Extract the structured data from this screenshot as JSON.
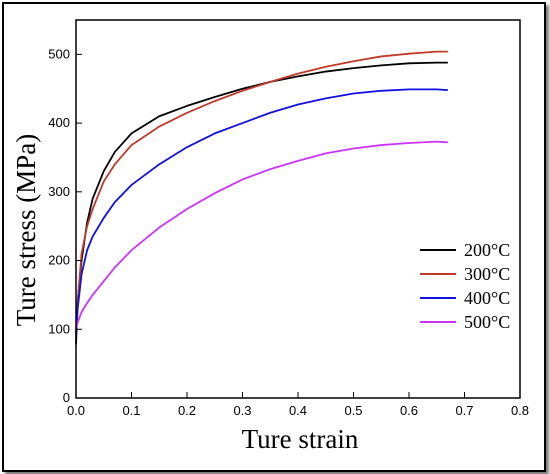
{
  "chart_data": {
    "type": "line",
    "xlabel": "Ture strain",
    "ylabel": "Ture stress (MPa)",
    "xlim": [
      0,
      0.8
    ],
    "ylim": [
      0,
      550
    ],
    "xticks": [
      "0.0",
      "0.1",
      "0.2",
      "0.3",
      "0.4",
      "0.5",
      "0.6",
      "0.7",
      "0.8"
    ],
    "yticks": [
      "0",
      "100",
      "200",
      "300",
      "400",
      "500"
    ],
    "legend_position": "bottom-right",
    "grid": false,
    "series": [
      {
        "name": "200°C",
        "color": "#000000",
        "x": [
          0,
          0.003,
          0.01,
          0.02,
          0.03,
          0.05,
          0.07,
          0.1,
          0.15,
          0.2,
          0.25,
          0.3,
          0.35,
          0.4,
          0.45,
          0.5,
          0.55,
          0.6,
          0.65,
          0.67
        ],
        "y": [
          78,
          140,
          200,
          255,
          290,
          330,
          358,
          385,
          410,
          425,
          438,
          450,
          460,
          468,
          475,
          480,
          484,
          487,
          488,
          488
        ]
      },
      {
        "name": "300°C",
        "color": "#c0392b",
        "x": [
          0,
          0.003,
          0.01,
          0.02,
          0.03,
          0.05,
          0.07,
          0.1,
          0.15,
          0.2,
          0.25,
          0.3,
          0.35,
          0.4,
          0.45,
          0.5,
          0.55,
          0.6,
          0.65,
          0.67
        ],
        "y": [
          95,
          140,
          210,
          250,
          275,
          315,
          340,
          368,
          395,
          415,
          432,
          447,
          460,
          472,
          482,
          490,
          497,
          501,
          504,
          504
        ]
      },
      {
        "name": "400°C",
        "color": "#1010e0",
        "x": [
          0,
          0.003,
          0.01,
          0.02,
          0.03,
          0.05,
          0.07,
          0.1,
          0.15,
          0.2,
          0.25,
          0.3,
          0.35,
          0.4,
          0.45,
          0.5,
          0.55,
          0.6,
          0.65,
          0.67
        ],
        "y": [
          90,
          130,
          180,
          215,
          235,
          262,
          285,
          310,
          340,
          365,
          385,
          400,
          415,
          427,
          436,
          443,
          447,
          449,
          449,
          448
        ]
      },
      {
        "name": "500°C",
        "color": "#cc33ff",
        "x": [
          0,
          0.003,
          0.01,
          0.02,
          0.03,
          0.05,
          0.07,
          0.1,
          0.15,
          0.2,
          0.25,
          0.3,
          0.35,
          0.4,
          0.45,
          0.5,
          0.55,
          0.6,
          0.65,
          0.67
        ],
        "y": [
          100,
          110,
          125,
          138,
          150,
          170,
          190,
          215,
          248,
          275,
          298,
          318,
          333,
          345,
          356,
          363,
          368,
          371,
          373,
          372
        ]
      }
    ]
  }
}
